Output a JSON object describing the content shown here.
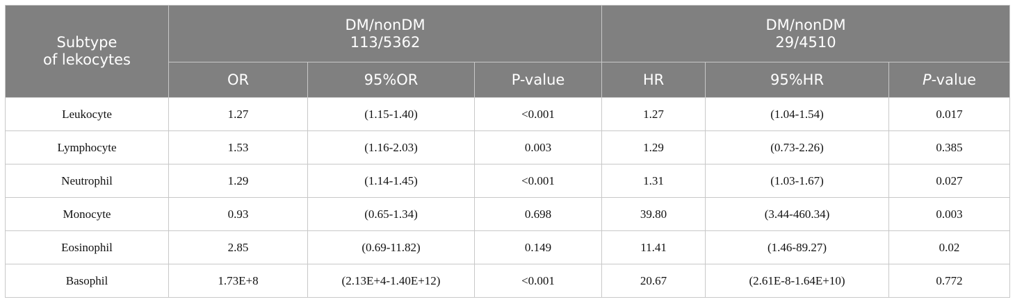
{
  "header": {
    "row_label_line1": "Subtype",
    "row_label_line2": "of lekocytes",
    "group1": {
      "line1": "DM/nonDM",
      "line2": "113/5362"
    },
    "group2": {
      "line1": "DM/nonDM",
      "line2": "29/4510"
    },
    "group1_cols": [
      "OR",
      "95%OR",
      "P-value"
    ],
    "group2_cols": [
      "HR",
      "95%HR"
    ],
    "group2_p_italic": "P",
    "group2_p_rest": "-value"
  },
  "rows": [
    {
      "subtype": "Leukocyte",
      "or": "1.27",
      "or_ci": "(1.15-1.40)",
      "or_p": "<0.001",
      "hr": "1.27",
      "hr_ci": "(1.04-1.54)",
      "hr_p": "0.017"
    },
    {
      "subtype": "Lymphocyte",
      "or": "1.53",
      "or_ci": "(1.16-2.03)",
      "or_p": "0.003",
      "hr": "1.29",
      "hr_ci": "(0.73-2.26)",
      "hr_p": "0.385"
    },
    {
      "subtype": "Neutrophil",
      "or": "1.29",
      "or_ci": "(1.14-1.45)",
      "or_p": "<0.001",
      "hr": "1.31",
      "hr_ci": "(1.03-1.67)",
      "hr_p": "0.027"
    },
    {
      "subtype": "Monocyte",
      "or": "0.93",
      "or_ci": "(0.65-1.34)",
      "or_p": "0.698",
      "hr": "39.80",
      "hr_ci": "(3.44-460.34)",
      "hr_p": "0.003"
    },
    {
      "subtype": "Eosinophil",
      "or": "2.85",
      "or_ci": "(0.69-11.82)",
      "or_p": "0.149",
      "hr": "11.41",
      "hr_ci": "(1.46-89.27)",
      "hr_p": "0.02"
    },
    {
      "subtype": "Basophil",
      "or": "1.73E+8",
      "or_ci": "(2.13E+4-1.40E+12)",
      "or_p": "<0.001",
      "hr": "20.67",
      "hr_ci": "(2.61E-8-1.64E+10)",
      "hr_p": "0.772"
    }
  ]
}
